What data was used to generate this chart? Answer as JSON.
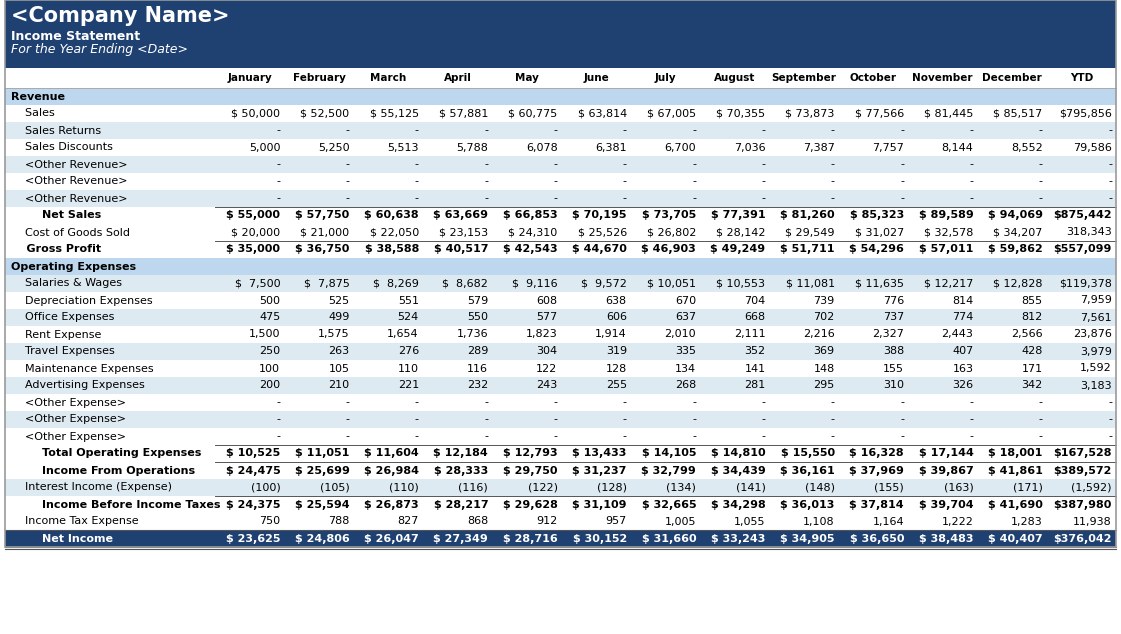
{
  "title": "<Company Name>",
  "subtitle1": "Income Statement",
  "subtitle2": "For the Year Ending <Date>",
  "header_bg": "#1F4172",
  "header_text_color": "#FFFFFF",
  "section_bg": "#BDD7EE",
  "total_bg": "#1F4172",
  "total_text": "#FFFFFF",
  "white_bg": "#FFFFFF",
  "alt_bg": "#DEEAF1",
  "border_color": "#A0A0A0",
  "columns": [
    "January",
    "February",
    "March",
    "April",
    "May",
    "June",
    "July",
    "August",
    "September",
    "October",
    "November",
    "December",
    "YTD"
  ],
  "rows": [
    {
      "label": "Revenue",
      "type": "section",
      "values": [
        "",
        "",
        "",
        "",
        "",
        "",
        "",
        "",
        "",
        "",
        "",
        "",
        ""
      ]
    },
    {
      "label": "    Sales",
      "type": "normal",
      "dollar": true,
      "values": [
        "$ 50,000",
        "$ 52,500",
        "$ 55,125",
        "$ 57,881",
        "$ 60,775",
        "$ 63,814",
        "$ 67,005",
        "$ 70,355",
        "$ 73,873",
        "$ 77,566",
        "$ 81,445",
        "$ 85,517",
        "$795,856"
      ]
    },
    {
      "label": "    Sales Returns",
      "type": "normal",
      "dollar": false,
      "values": [
        "-",
        "-",
        "-",
        "-",
        "-",
        "-",
        "-",
        "-",
        "-",
        "-",
        "-",
        "-",
        "-"
      ]
    },
    {
      "label": "    Sales Discounts",
      "type": "normal",
      "dollar": false,
      "values": [
        "5,000",
        "5,250",
        "5,513",
        "5,788",
        "6,078",
        "6,381",
        "6,700",
        "7,036",
        "7,387",
        "7,757",
        "8,144",
        "8,552",
        "79,586"
      ]
    },
    {
      "label": "    <Other Revenue>",
      "type": "normal",
      "dollar": false,
      "values": [
        "-",
        "-",
        "-",
        "-",
        "-",
        "-",
        "-",
        "-",
        "-",
        "-",
        "-",
        "-",
        "-"
      ]
    },
    {
      "label": "    <Other Revenue>",
      "type": "normal",
      "dollar": false,
      "values": [
        "-",
        "-",
        "-",
        "-",
        "-",
        "-",
        "-",
        "-",
        "-",
        "-",
        "-",
        "-",
        "-"
      ]
    },
    {
      "label": "    <Other Revenue>",
      "type": "normal",
      "dollar": false,
      "values": [
        "-",
        "-",
        "-",
        "-",
        "-",
        "-",
        "-",
        "-",
        "-",
        "-",
        "-",
        "-",
        "-"
      ]
    },
    {
      "label": "        Net Sales",
      "type": "subtotal",
      "dollar": true,
      "values": [
        "$ 55,000",
        "$ 57,750",
        "$ 60,638",
        "$ 63,669",
        "$ 66,853",
        "$ 70,195",
        "$ 73,705",
        "$ 77,391",
        "$ 81,260",
        "$ 85,323",
        "$ 89,589",
        "$ 94,069",
        "$875,442"
      ]
    },
    {
      "label": "    Cost of Goods Sold",
      "type": "normal",
      "dollar": true,
      "values": [
        "$ 20,000",
        "$ 21,000",
        "$ 22,050",
        "$ 23,153",
        "$ 24,310",
        "$ 25,526",
        "$ 26,802",
        "$ 28,142",
        "$ 29,549",
        "$ 31,027",
        "$ 32,578",
        "$ 34,207",
        "318,343"
      ]
    },
    {
      "label": "    Gross Profit",
      "type": "subtotal",
      "dollar": true,
      "values": [
        "$ 35,000",
        "$ 36,750",
        "$ 38,588",
        "$ 40,517",
        "$ 42,543",
        "$ 44,670",
        "$ 46,903",
        "$ 49,249",
        "$ 51,711",
        "$ 54,296",
        "$ 57,011",
        "$ 59,862",
        "$557,099"
      ]
    },
    {
      "label": "Operating Expenses",
      "type": "section",
      "values": [
        "",
        "",
        "",
        "",
        "",
        "",
        "",
        "",
        "",
        "",
        "",
        "",
        ""
      ]
    },
    {
      "label": "    Salaries & Wages",
      "type": "normal",
      "dollar": true,
      "values": [
        "$  7,500",
        "$  7,875",
        "$  8,269",
        "$  8,682",
        "$  9,116",
        "$  9,572",
        "$ 10,051",
        "$ 10,553",
        "$ 11,081",
        "$ 11,635",
        "$ 12,217",
        "$ 12,828",
        "$119,378"
      ]
    },
    {
      "label": "    Depreciation Expenses",
      "type": "normal",
      "dollar": false,
      "values": [
        "500",
        "525",
        "551",
        "579",
        "608",
        "638",
        "670",
        "704",
        "739",
        "776",
        "814",
        "855",
        "7,959"
      ]
    },
    {
      "label": "    Office Expenses",
      "type": "normal",
      "dollar": false,
      "values": [
        "475",
        "499",
        "524",
        "550",
        "577",
        "606",
        "637",
        "668",
        "702",
        "737",
        "774",
        "812",
        "7,561"
      ]
    },
    {
      "label": "    Rent Expense",
      "type": "normal",
      "dollar": false,
      "values": [
        "1,500",
        "1,575",
        "1,654",
        "1,736",
        "1,823",
        "1,914",
        "2,010",
        "2,111",
        "2,216",
        "2,327",
        "2,443",
        "2,566",
        "23,876"
      ]
    },
    {
      "label": "    Travel Expenses",
      "type": "normal",
      "dollar": false,
      "values": [
        "250",
        "263",
        "276",
        "289",
        "304",
        "319",
        "335",
        "352",
        "369",
        "388",
        "407",
        "428",
        "3,979"
      ]
    },
    {
      "label": "    Maintenance Expenses",
      "type": "normal",
      "dollar": false,
      "values": [
        "100",
        "105",
        "110",
        "116",
        "122",
        "128",
        "134",
        "141",
        "148",
        "155",
        "163",
        "171",
        "1,592"
      ]
    },
    {
      "label": "    Advertising Expenses",
      "type": "normal",
      "dollar": false,
      "values": [
        "200",
        "210",
        "221",
        "232",
        "243",
        "255",
        "268",
        "281",
        "295",
        "310",
        "326",
        "342",
        "3,183"
      ]
    },
    {
      "label": "    <Other Expense>",
      "type": "normal",
      "dollar": false,
      "values": [
        "-",
        "-",
        "-",
        "-",
        "-",
        "-",
        "-",
        "-",
        "-",
        "-",
        "-",
        "-",
        "-"
      ]
    },
    {
      "label": "    <Other Expense>",
      "type": "normal",
      "dollar": false,
      "values": [
        "-",
        "-",
        "-",
        "-",
        "-",
        "-",
        "-",
        "-",
        "-",
        "-",
        "-",
        "-",
        "-"
      ]
    },
    {
      "label": "    <Other Expense>",
      "type": "normal",
      "dollar": false,
      "values": [
        "-",
        "-",
        "-",
        "-",
        "-",
        "-",
        "-",
        "-",
        "-",
        "-",
        "-",
        "-",
        "-"
      ]
    },
    {
      "label": "        Total Operating Expenses",
      "type": "subtotal",
      "dollar": true,
      "values": [
        "$ 10,525",
        "$ 11,051",
        "$ 11,604",
        "$ 12,184",
        "$ 12,793",
        "$ 13,433",
        "$ 14,105",
        "$ 14,810",
        "$ 15,550",
        "$ 16,328",
        "$ 17,144",
        "$ 18,001",
        "$167,528"
      ]
    },
    {
      "label": "        Income From Operations",
      "type": "subtotal",
      "dollar": true,
      "values": [
        "$ 24,475",
        "$ 25,699",
        "$ 26,984",
        "$ 28,333",
        "$ 29,750",
        "$ 31,237",
        "$ 32,799",
        "$ 34,439",
        "$ 36,161",
        "$ 37,969",
        "$ 39,867",
        "$ 41,861",
        "$389,572"
      ]
    },
    {
      "label": "    Interest Income (Expense)",
      "type": "normal",
      "dollar": false,
      "values": [
        "(100)",
        "(105)",
        "(110)",
        "(116)",
        "(122)",
        "(128)",
        "(134)",
        "(141)",
        "(148)",
        "(155)",
        "(163)",
        "(171)",
        "(1,592)"
      ]
    },
    {
      "label": "        Income Before Income Taxes",
      "type": "subtotal",
      "dollar": true,
      "values": [
        "$ 24,375",
        "$ 25,594",
        "$ 26,873",
        "$ 28,217",
        "$ 29,628",
        "$ 31,109",
        "$ 32,665",
        "$ 34,298",
        "$ 36,013",
        "$ 37,814",
        "$ 39,704",
        "$ 41,690",
        "$387,980"
      ]
    },
    {
      "label": "    Income Tax Expense",
      "type": "normal",
      "dollar": false,
      "values": [
        "750",
        "788",
        "827",
        "868",
        "912",
        "957",
        "1,005",
        "1,055",
        "1,108",
        "1,164",
        "1,222",
        "1,283",
        "11,938"
      ]
    },
    {
      "label": "        Net Income",
      "type": "total",
      "dollar": true,
      "values": [
        "$ 23,625",
        "$ 24,806",
        "$ 26,047",
        "$ 27,349",
        "$ 28,716",
        "$ 30,152",
        "$ 31,660",
        "$ 33,243",
        "$ 34,905",
        "$ 36,650",
        "$ 38,483",
        "$ 40,407",
        "$376,042"
      ]
    }
  ]
}
